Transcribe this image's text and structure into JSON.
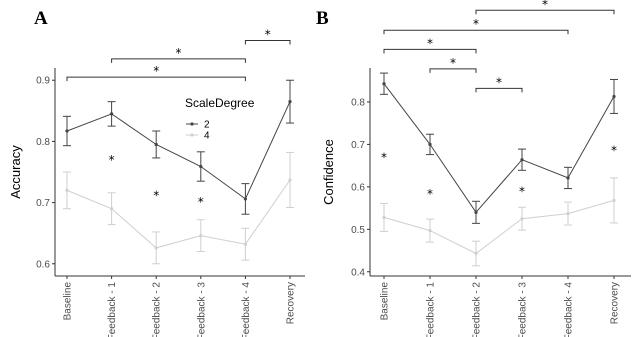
{
  "colors": {
    "series_2": "#444444",
    "series_4": "#cfcfcf",
    "axis": "#333333",
    "tick_text": "#4d4d4d",
    "bracket": "#333333"
  },
  "chart_data": [
    {
      "type": "line",
      "panel_label": "A",
      "ylabel": "Accuracy",
      "categories": [
        "Baseline",
        "Feedback - 1",
        "Feedback - 2",
        "Feedback - 3",
        "Feedback - 4",
        "Recovery"
      ],
      "ylim": [
        0.58,
        0.92
      ],
      "yticks": [
        0.6,
        0.7,
        0.8,
        0.9
      ],
      "ytick_labels": [
        "0.6",
        "0.7",
        "0.8",
        "0.9"
      ],
      "grid": false,
      "legend": {
        "title": "ScaleDegree",
        "placement": "top-right-inside"
      },
      "series": [
        {
          "name": "2",
          "values": [
            0.817,
            0.845,
            0.795,
            0.759,
            0.706,
            0.865
          ],
          "err": [
            0.024,
            0.02,
            0.022,
            0.024,
            0.025,
            0.035
          ]
        },
        {
          "name": "4",
          "values": [
            0.72,
            0.69,
            0.626,
            0.646,
            0.632,
            0.737
          ],
          "err": [
            0.03,
            0.026,
            0.026,
            0.026,
            0.026,
            0.045
          ]
        }
      ],
      "significance_stars": [
        {
          "category": 1,
          "y": 0.771,
          "text": "*"
        },
        {
          "category": 2,
          "y": 0.713,
          "text": "*"
        },
        {
          "category": 3,
          "y": 0.703,
          "text": "*"
        }
      ],
      "brackets": [
        {
          "from": 0,
          "to": 4,
          "y": 0.905,
          "text": "*"
        },
        {
          "from": 1,
          "to": 4,
          "y": 0.935,
          "text": "*"
        },
        {
          "from": 4,
          "to": 5,
          "y": 0.965,
          "text": "*"
        }
      ]
    },
    {
      "type": "line",
      "panel_label": "B",
      "ylabel": "Confidence",
      "categories": [
        "Baseline",
        "Feedback - 1",
        "Feedback - 2",
        "Feedback - 3",
        "Feedback - 4",
        "Recovery"
      ],
      "ylim": [
        0.39,
        0.88
      ],
      "yticks": [
        0.4,
        0.5,
        0.6,
        0.7,
        0.8
      ],
      "ytick_labels": [
        "0.4",
        "0.5",
        "0.6",
        "0.7",
        "0.8"
      ],
      "grid": false,
      "legend": null,
      "series": [
        {
          "name": "2",
          "values": [
            0.843,
            0.7,
            0.54,
            0.664,
            0.621,
            0.813
          ],
          "err": [
            0.025,
            0.024,
            0.026,
            0.025,
            0.025,
            0.04
          ]
        },
        {
          "name": "4",
          "values": [
            0.528,
            0.497,
            0.443,
            0.525,
            0.537,
            0.568
          ],
          "err": [
            0.033,
            0.027,
            0.029,
            0.027,
            0.027,
            0.053
          ]
        }
      ],
      "significance_stars": [
        {
          "category": 0,
          "y": 0.671,
          "text": "*"
        },
        {
          "category": 1,
          "y": 0.585,
          "text": "*"
        },
        {
          "category": 3,
          "y": 0.591,
          "text": "*"
        },
        {
          "category": 5,
          "y": 0.688,
          "text": "*"
        }
      ],
      "brackets": [
        {
          "from": 2,
          "to": 3,
          "y": 0.832,
          "text": "*"
        },
        {
          "from": 1,
          "to": 2,
          "y": 0.878,
          "text": "*"
        },
        {
          "from": 0,
          "to": 2,
          "y": 0.924,
          "text": "*"
        },
        {
          "from": 0,
          "to": 4,
          "y": 0.969,
          "text": "*"
        },
        {
          "from": 2,
          "to": 5,
          "y": 1.016,
          "text": "*"
        }
      ]
    }
  ]
}
